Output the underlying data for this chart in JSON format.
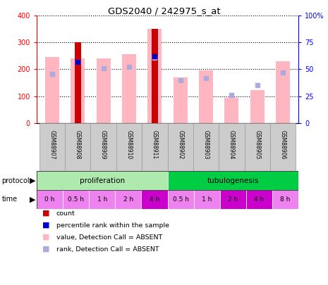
{
  "title": "GDS2040 / 242975_s_at",
  "samples": [
    "GSM88907",
    "GSM88908",
    "GSM88909",
    "GSM88910",
    "GSM88911",
    "GSM88902",
    "GSM88903",
    "GSM88904",
    "GSM88905",
    "GSM88906"
  ],
  "value_absent": [
    245,
    240,
    240,
    255,
    350,
    170,
    197,
    95,
    123,
    230
  ],
  "rank_absent_pct": [
    46,
    57,
    51,
    52,
    61,
    40,
    42,
    26,
    35,
    47
  ],
  "count": [
    0,
    300,
    0,
    0,
    350,
    0,
    0,
    0,
    0,
    0
  ],
  "percentile_rank_pct": [
    0,
    57,
    0,
    0,
    62,
    0,
    0,
    0,
    0,
    0
  ],
  "protocol_groups": [
    {
      "label": "proliferation",
      "start": 0,
      "end": 5,
      "color": "#AEEAAE"
    },
    {
      "label": "tubulogenesis",
      "start": 5,
      "end": 10,
      "color": "#00CC44"
    }
  ],
  "time_labels": [
    "0 h",
    "0.5 h",
    "1 h",
    "2 h",
    "4 h",
    "0.5 h",
    "1 h",
    "2 h",
    "4 h",
    "8 h"
  ],
  "time_colors": [
    "#EE82EE",
    "#EE82EE",
    "#EE82EE",
    "#EE82EE",
    "#CC00CC",
    "#EE82EE",
    "#EE82EE",
    "#CC00CC",
    "#CC00CC",
    "#EE82EE"
  ],
  "ylim_left": [
    0,
    400
  ],
  "ylim_right": [
    0,
    100
  ],
  "color_count": "#CC0000",
  "color_percentile": "#0000CC",
  "color_value_absent": "#FFB6C1",
  "color_rank_absent": "#AAAADD",
  "background_color": "#FFFFFF",
  "sample_bg": "#CCCCCC",
  "legend_items": [
    {
      "color": "#CC0000",
      "label": "count"
    },
    {
      "color": "#0000CC",
      "label": "percentile rank within the sample"
    },
    {
      "color": "#FFB6C1",
      "label": "value, Detection Call = ABSENT"
    },
    {
      "color": "#AAAADD",
      "label": "rank, Detection Call = ABSENT"
    }
  ]
}
